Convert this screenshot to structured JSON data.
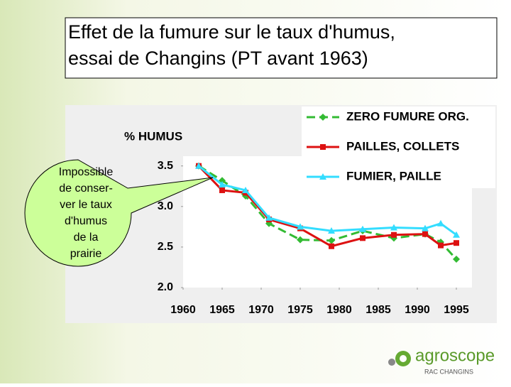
{
  "chart_data": {
    "type": "line",
    "title": [
      "Effet de la fumure sur le taux d'humus,",
      "essai de Changins (PT avant 1963)"
    ],
    "y_label": "% HUMUS",
    "x": [
      1962,
      1965,
      1968,
      1971,
      1975,
      1979,
      1983,
      1987,
      1991,
      1993,
      1995
    ],
    "series": [
      {
        "name": "ZERO FUMURE ORG.",
        "color": "#33bb33",
        "marker": "diamond",
        "dashed": true,
        "values": [
          3.5,
          3.32,
          3.13,
          2.79,
          2.59,
          2.58,
          2.7,
          2.61,
          2.66,
          2.56,
          2.35
        ]
      },
      {
        "name": "PAILLES, COLLETS",
        "color": "#dd1111",
        "marker": "square",
        "dashed": false,
        "values": [
          3.5,
          3.2,
          3.17,
          2.84,
          2.73,
          2.51,
          2.61,
          2.65,
          2.66,
          2.52,
          2.55
        ]
      },
      {
        "name": "FUMIER, PAILLE",
        "color": "#33ddff",
        "marker": "triangle",
        "dashed": false,
        "values": [
          3.5,
          3.27,
          3.2,
          2.86,
          2.75,
          2.7,
          2.72,
          2.74,
          2.73,
          2.79,
          2.65
        ]
      }
    ],
    "xlim": [
      1960,
      1997
    ],
    "xticks": [
      1960,
      1965,
      1970,
      1975,
      1980,
      1985,
      1990,
      1995
    ],
    "ylim": [
      2,
      3.62
    ],
    "yticks": [
      {
        "value": 2,
        "label": "2.0"
      },
      2.5,
      {
        "value": 3,
        "label": "3.0"
      },
      3.5
    ],
    "legend": "upper right",
    "annotation": [
      "Impossible",
      "de conser-",
      "ver le taux",
      "d'humus",
      "de la",
      "prairie"
    ]
  },
  "logo": {
    "name": "agroscope",
    "subtitle": "RAC CHANGINS"
  }
}
